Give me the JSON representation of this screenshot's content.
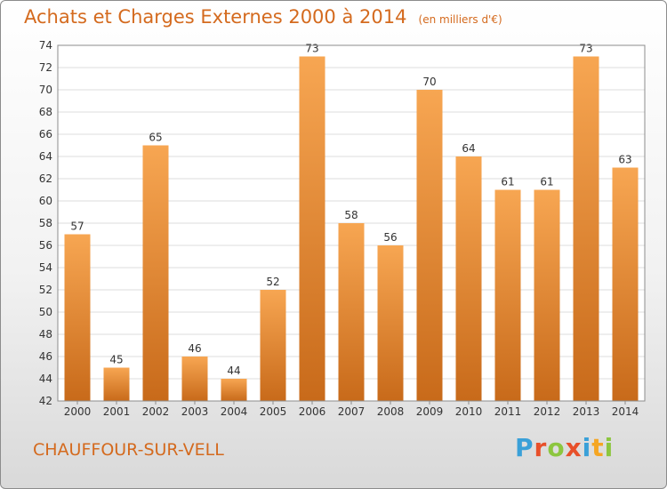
{
  "title": "Achats et Charges Externes 2000 à 2014",
  "unit": "(en milliers d'€)",
  "commune": "CHAUFFOUR-SUR-VELL",
  "logo": {
    "letters": [
      "P",
      "r",
      "o",
      "x",
      "i",
      "t",
      "i"
    ],
    "colors": [
      "#3aa0d8",
      "#e8502a",
      "#8cc63f",
      "#e8502a",
      "#3aa0d8",
      "#f5a623",
      "#8cc63f"
    ]
  },
  "colors": {
    "accent": "#d46a1e",
    "bar_light": "#f7a652",
    "bar_dark": "#c86a1a"
  },
  "chart_data": {
    "type": "bar",
    "title": "Achats et Charges Externes 2000 à 2014",
    "categories": [
      "2000",
      "2001",
      "2002",
      "2003",
      "2004",
      "2005",
      "2006",
      "2007",
      "2008",
      "2009",
      "2010",
      "2011",
      "2012",
      "2013",
      "2014"
    ],
    "values": [
      57,
      45,
      65,
      46,
      44,
      52,
      73,
      58,
      56,
      70,
      64,
      61,
      61,
      73,
      63
    ],
    "ylim": [
      42,
      74
    ],
    "yticks": [
      42,
      44,
      46,
      48,
      50,
      52,
      54,
      56,
      58,
      60,
      62,
      64,
      66,
      68,
      70,
      72,
      74
    ],
    "grid": true,
    "xlabel": "",
    "ylabel": ""
  }
}
